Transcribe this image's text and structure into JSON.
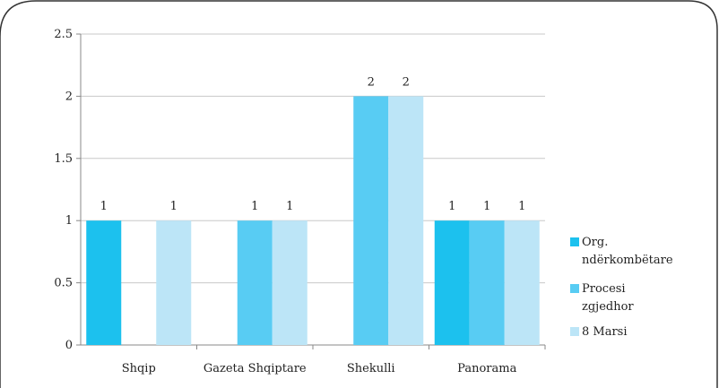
{
  "chart_data": {
    "type": "bar",
    "title": "",
    "xlabel": "",
    "ylabel": "",
    "categories": [
      "Shqip",
      "Gazeta Shqiptare",
      "Shekulli",
      "Panorama"
    ],
    "series": [
      {
        "name": "Org. ndërkombëtare",
        "name_lines": [
          "Org.",
          "ndërkombëtare"
        ],
        "color": "#1CC1EE",
        "values": [
          1,
          0,
          0,
          1
        ],
        "labels": [
          "1",
          "",
          "",
          "1"
        ]
      },
      {
        "name": "Procesi zgjedhor",
        "name_lines": [
          "Procesi",
          "zgjedhor"
        ],
        "color": "#58CCF3",
        "values": [
          0,
          1,
          2,
          1
        ],
        "labels": [
          "",
          "1",
          "2",
          "1"
        ]
      },
      {
        "name": "8 Marsi",
        "name_lines": [
          "8 Marsi"
        ],
        "color": "#BCE5F7",
        "values": [
          1,
          1,
          2,
          1
        ],
        "labels": [
          "1",
          "1",
          "2",
          "1"
        ]
      }
    ],
    "ylim": [
      0,
      2.5
    ],
    "yticks": [
      "0",
      "0.5",
      "1",
      "1.5",
      "2",
      "2.5"
    ],
    "ytick_values": [
      0,
      0.5,
      1,
      1.5,
      2,
      2.5
    ],
    "grid": true,
    "legend": "right"
  }
}
